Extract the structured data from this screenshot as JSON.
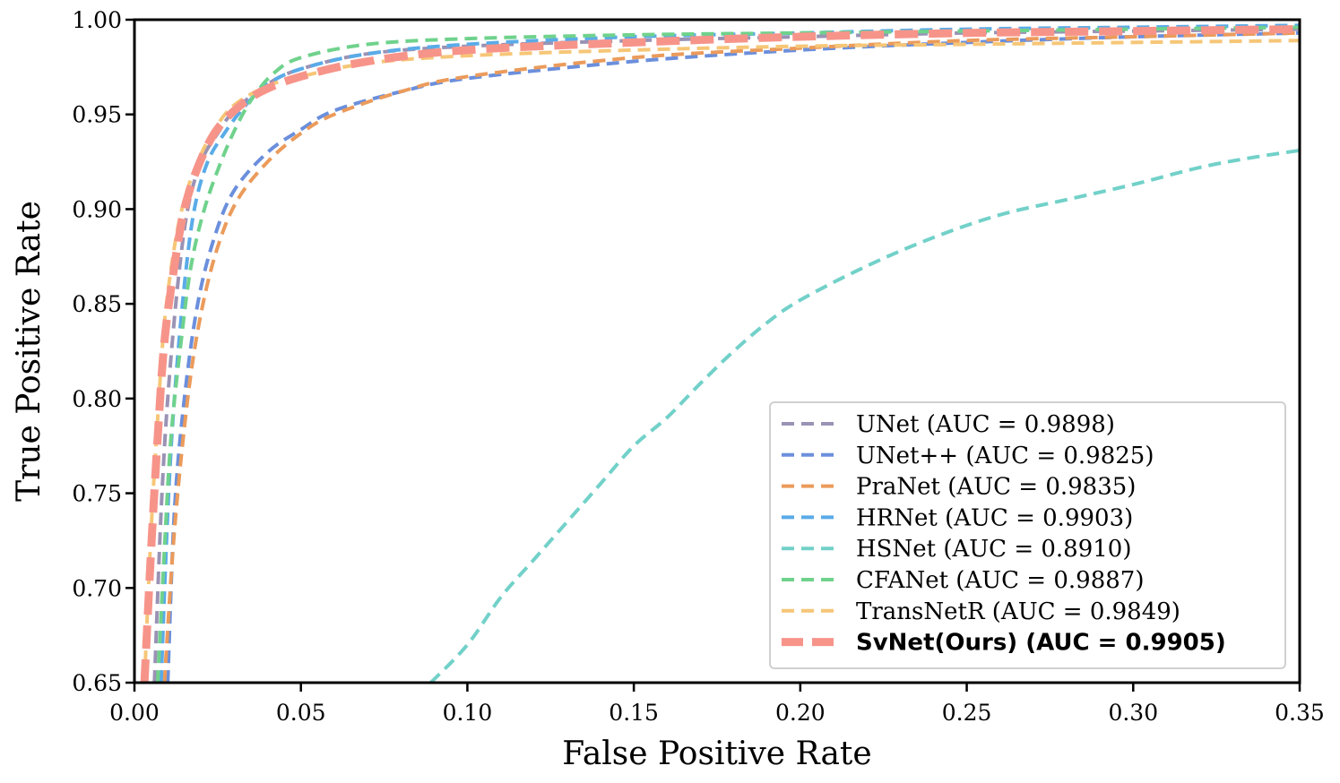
{
  "chart_data": {
    "type": "line",
    "title": "",
    "xlabel": "False Positive Rate",
    "ylabel": "True Positive Rate",
    "xlim": [
      0.0,
      0.35
    ],
    "ylim": [
      0.65,
      1.0
    ],
    "x_ticks": [
      0.0,
      0.05,
      0.1,
      0.15,
      0.2,
      0.25,
      0.3,
      0.35
    ],
    "x_tick_labels": [
      "0.00",
      "0.05",
      "0.10",
      "0.15",
      "0.20",
      "0.25",
      "0.30",
      "0.35"
    ],
    "y_ticks": [
      0.65,
      0.7,
      0.75,
      0.8,
      0.85,
      0.9,
      0.95,
      1.0
    ],
    "y_tick_labels": [
      "0.65",
      "0.70",
      "0.75",
      "0.80",
      "0.85",
      "0.90",
      "0.95",
      "1.00"
    ],
    "grid": false,
    "legend_position": "lower-right",
    "series": [
      {
        "name": "UNet (AUC = 0.9898)",
        "label": "UNet (AUC = 0.9898)",
        "color": "#9a93b5",
        "bold": false,
        "x": [
          0.006,
          0.008,
          0.01,
          0.013,
          0.016,
          0.02,
          0.025,
          0.03,
          0.04,
          0.05,
          0.07,
          0.1,
          0.15,
          0.2,
          0.25,
          0.3,
          0.35
        ],
        "y": [
          0.65,
          0.74,
          0.8,
          0.86,
          0.9,
          0.925,
          0.94,
          0.952,
          0.966,
          0.974,
          0.982,
          0.986,
          0.989,
          0.991,
          0.993,
          0.994,
          0.995
        ]
      },
      {
        "name": "UNet++ (AUC = 0.9825)",
        "label": "UNet++ (AUC = 0.9825)",
        "color": "#6b8fdc",
        "bold": false,
        "x": [
          0.01,
          0.012,
          0.015,
          0.019,
          0.024,
          0.03,
          0.04,
          0.05,
          0.06,
          0.08,
          0.1,
          0.15,
          0.2,
          0.25,
          0.3,
          0.35
        ],
        "y": [
          0.65,
          0.74,
          0.8,
          0.85,
          0.885,
          0.91,
          0.93,
          0.942,
          0.952,
          0.962,
          0.969,
          0.978,
          0.984,
          0.988,
          0.991,
          0.993
        ]
      },
      {
        "name": "PraNet (AUC = 0.9835)",
        "label": "PraNet (AUC = 0.9835)",
        "color": "#eb9b5b",
        "bold": false,
        "x": [
          0.009,
          0.012,
          0.016,
          0.02,
          0.025,
          0.031,
          0.04,
          0.05,
          0.06,
          0.08,
          0.1,
          0.15,
          0.2,
          0.25,
          0.3,
          0.35
        ],
        "y": [
          0.65,
          0.73,
          0.8,
          0.845,
          0.88,
          0.905,
          0.925,
          0.94,
          0.95,
          0.962,
          0.97,
          0.98,
          0.985,
          0.989,
          0.991,
          0.993
        ]
      },
      {
        "name": "HRNet (AUC = 0.9903)",
        "label": "HRNet (AUC = 0.9903)",
        "color": "#5aabe8",
        "bold": false,
        "x": [
          0.008,
          0.01,
          0.012,
          0.015,
          0.018,
          0.022,
          0.027,
          0.033,
          0.04,
          0.05,
          0.07,
          0.1,
          0.15,
          0.2,
          0.25,
          0.3,
          0.35
        ],
        "y": [
          0.65,
          0.74,
          0.8,
          0.86,
          0.9,
          0.925,
          0.94,
          0.954,
          0.966,
          0.974,
          0.982,
          0.987,
          0.991,
          0.993,
          0.995,
          0.996,
          0.997
        ]
      },
      {
        "name": "HSNet (AUC = 0.8910)",
        "label": "HSNet (AUC = 0.8910)",
        "color": "#72d1c9",
        "bold": false,
        "x": [
          0.089,
          0.1,
          0.11,
          0.12,
          0.13,
          0.14,
          0.15,
          0.16,
          0.17,
          0.18,
          0.19,
          0.2,
          0.22,
          0.24,
          0.26,
          0.28,
          0.3,
          0.32,
          0.335,
          0.35
        ],
        "y": [
          0.65,
          0.67,
          0.695,
          0.715,
          0.735,
          0.755,
          0.775,
          0.79,
          0.808,
          0.825,
          0.84,
          0.852,
          0.87,
          0.885,
          0.897,
          0.905,
          0.913,
          0.922,
          0.927,
          0.931
        ]
      },
      {
        "name": "CFANet (AUC = 0.9887)",
        "label": "CFANet (AUC = 0.9887)",
        "color": "#6fd28c",
        "bold": false,
        "x": [
          0.007,
          0.009,
          0.011,
          0.014,
          0.017,
          0.021,
          0.026,
          0.031,
          0.036,
          0.042,
          0.05,
          0.07,
          0.1,
          0.15,
          0.2,
          0.25,
          0.3,
          0.35
        ],
        "y": [
          0.65,
          0.72,
          0.78,
          0.83,
          0.87,
          0.9,
          0.925,
          0.945,
          0.96,
          0.972,
          0.98,
          0.987,
          0.99,
          0.992,
          0.993,
          0.994,
          0.995,
          0.996
        ]
      },
      {
        "name": "TransNetR (AUC = 0.9849)",
        "label": "TransNetR (AUC = 0.9849)",
        "color": "#f6c677",
        "bold": false,
        "x": [
          0.003,
          0.005,
          0.007,
          0.009,
          0.012,
          0.015,
          0.019,
          0.024,
          0.03,
          0.04,
          0.05,
          0.07,
          0.1,
          0.15,
          0.2,
          0.25,
          0.3,
          0.35
        ],
        "y": [
          0.65,
          0.73,
          0.79,
          0.84,
          0.88,
          0.905,
          0.925,
          0.942,
          0.955,
          0.965,
          0.97,
          0.977,
          0.981,
          0.984,
          0.986,
          0.987,
          0.988,
          0.989
        ]
      },
      {
        "name": "SvNet(Ours) (AUC = 0.9905)",
        "label": "SvNet(Ours) (AUC = 0.9905)",
        "color": "#f7948a",
        "bold": true,
        "x": [
          0.003,
          0.005,
          0.007,
          0.009,
          0.012,
          0.015,
          0.019,
          0.024,
          0.03,
          0.038,
          0.05,
          0.07,
          0.1,
          0.15,
          0.2,
          0.25,
          0.3,
          0.35
        ],
        "y": [
          0.65,
          0.72,
          0.78,
          0.83,
          0.87,
          0.9,
          0.922,
          0.94,
          0.952,
          0.962,
          0.97,
          0.978,
          0.984,
          0.988,
          0.991,
          0.993,
          0.994,
          0.995
        ]
      }
    ]
  }
}
